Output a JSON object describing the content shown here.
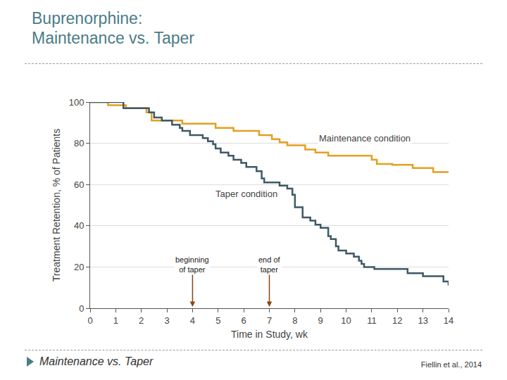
{
  "slide": {
    "title": "Buprenorphine:\nMaintenance vs. Taper",
    "footer": "Maintenance vs. Taper",
    "citation": "Fiellin et al., 2014"
  },
  "chart_data": {
    "type": "line",
    "line_style": "step",
    "x_label": "Time in Study, wk",
    "y_label": "Treatment Retention, % of Patients",
    "xlim": [
      0,
      14
    ],
    "xticks": [
      0,
      1,
      2,
      3,
      4,
      5,
      6,
      7,
      8,
      9,
      10,
      11,
      12,
      13,
      14
    ],
    "ylim": [
      0,
      100
    ],
    "yticks": [
      0,
      20,
      40,
      60,
      80,
      100
    ],
    "grid": true,
    "series": [
      {
        "name": "Maintenance condition",
        "color": "#e3a020",
        "x": [
          0,
          0.7,
          1.4,
          2.2,
          2.4,
          3.6,
          4.9,
          5.6,
          6.6,
          7.1,
          7.4,
          7.7,
          8.4,
          8.8,
          9.3,
          11.0,
          11.2,
          11.8,
          12.6,
          13.4,
          14
        ],
        "values": [
          100,
          98.5,
          97,
          95,
          91,
          89.5,
          87.5,
          86,
          84,
          82,
          80.5,
          79,
          77,
          75.5,
          74,
          72,
          70,
          69.5,
          68,
          66,
          66
        ]
      },
      {
        "name": "Taper condition",
        "color": "#3e5966",
        "x": [
          0,
          1.3,
          2.3,
          2.5,
          2.8,
          3.2,
          3.5,
          3.6,
          3.9,
          4.4,
          4.6,
          4.8,
          4.9,
          5.1,
          5.4,
          5.6,
          5.9,
          6.1,
          6.5,
          6.7,
          6.8,
          7.4,
          7.7,
          7.9,
          8.0,
          8.3,
          8.6,
          8.8,
          9.0,
          9.3,
          9.4,
          9.6,
          9.7,
          10.0,
          10.3,
          10.5,
          10.6,
          10.7,
          11.1,
          12.4,
          13.0,
          13.8,
          14
        ],
        "values": [
          100,
          97,
          95,
          92.5,
          91,
          89,
          87.5,
          86,
          84,
          82.5,
          81,
          79.5,
          77.5,
          75.5,
          74,
          72,
          70.5,
          68.5,
          66.5,
          63,
          61,
          59.5,
          58,
          55,
          49,
          44,
          42.5,
          40.5,
          39,
          35,
          33.5,
          30,
          28,
          26.5,
          25,
          23,
          21.5,
          20,
          19,
          17,
          15.5,
          13,
          11
        ]
      }
    ],
    "annotations": [
      {
        "text": "beginning\nof taper",
        "x": 4
      },
      {
        "text": "end of\ntaper",
        "x": 7
      }
    ]
  }
}
